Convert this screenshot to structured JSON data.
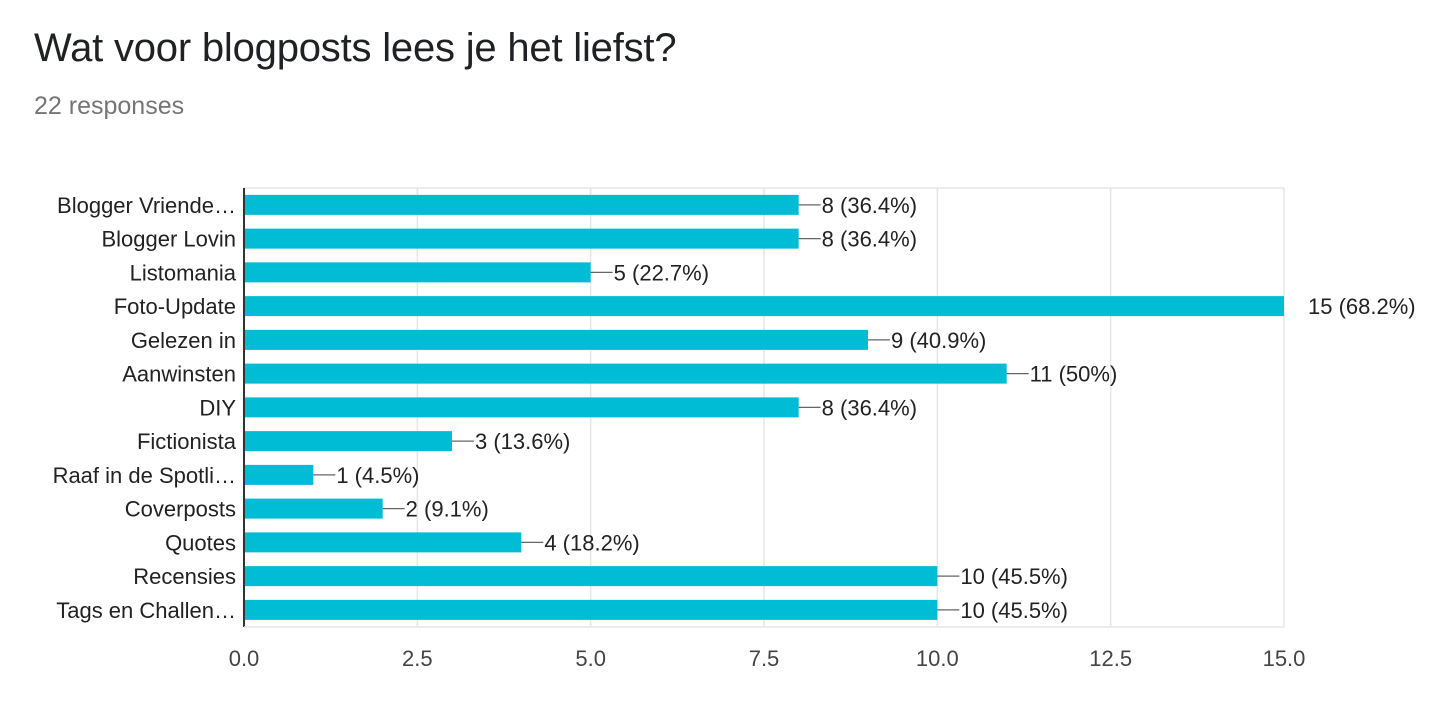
{
  "question": {
    "title": "Wat voor blogposts lees je het liefst?",
    "responses": "22 responses"
  },
  "colors": {
    "bar": "#00bcd4",
    "grid": "#e6e6e6",
    "axis": "#333333",
    "leader": "#666666"
  },
  "chart_data": {
    "type": "bar",
    "orientation": "horizontal",
    "categories": [
      "Blogger Vriende…",
      "Blogger Lovin",
      "Listomania",
      "Foto-Update",
      "Gelezen in",
      "Aanwinsten",
      "DIY",
      "Fictionista",
      "Raaf in de Spotli…",
      "Coverposts",
      "Quotes",
      "Recensies",
      "Tags en Challen…"
    ],
    "values": [
      8,
      8,
      5,
      15,
      9,
      11,
      8,
      3,
      1,
      2,
      4,
      10,
      10
    ],
    "data_labels": [
      "8 (36.4%)",
      "8 (36.4%)",
      "5 (22.7%)",
      "15 (68.2%)",
      "9 (40.9%)",
      "11 (50%)",
      "8 (36.4%)",
      "3 (13.6%)",
      "1 (4.5%)",
      "2 (9.1%)",
      "4 (18.2%)",
      "10 (45.5%)",
      "10 (45.5%)"
    ],
    "xlim": [
      0,
      15
    ],
    "xticks": [
      "0.0",
      "2.5",
      "5.0",
      "7.5",
      "10.0",
      "12.5",
      "15.0"
    ],
    "xtick_values": [
      0,
      2.5,
      5,
      7.5,
      10,
      12.5,
      15
    ],
    "grid": true,
    "legend": "none"
  }
}
